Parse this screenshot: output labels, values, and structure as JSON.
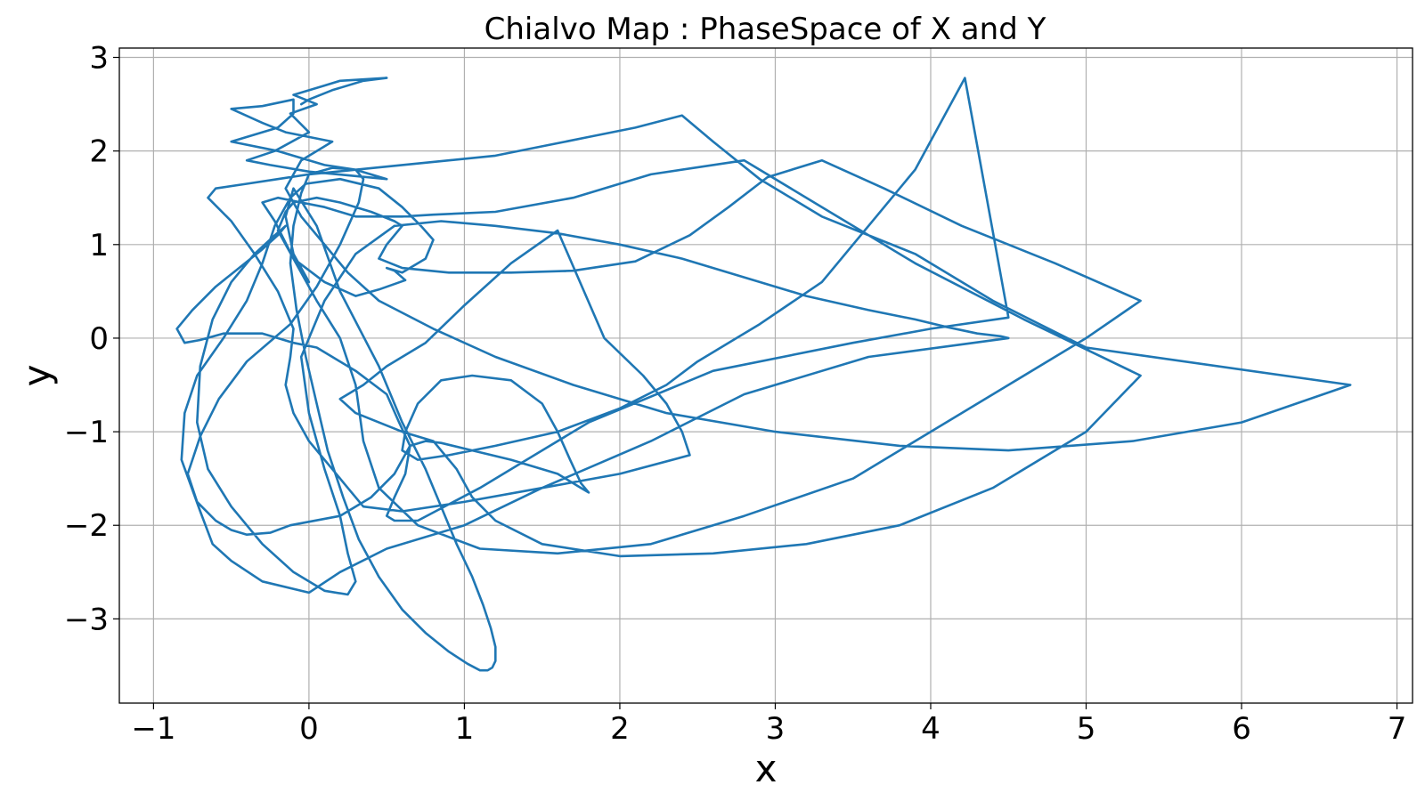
{
  "chart_data": {
    "type": "line",
    "title": "Chialvo Map : PhaseSpace of X and Y",
    "xlabel": "x",
    "ylabel": "y",
    "xlim": [
      -1.22,
      7.1
    ],
    "ylim": [
      -3.9,
      3.1
    ],
    "xticks": [
      -1,
      0,
      1,
      2,
      3,
      4,
      5,
      6,
      7
    ],
    "yticks": [
      -3,
      -2,
      -1,
      0,
      1,
      2,
      3
    ],
    "xtick_labels": [
      "−1",
      "0",
      "1",
      "2",
      "3",
      "4",
      "5",
      "6",
      "7"
    ],
    "ytick_labels": [
      "−3",
      "−2",
      "−1",
      "0",
      "1",
      "2",
      "3"
    ],
    "grid": true,
    "legend": "none",
    "series": [
      {
        "color": "#1f77b4",
        "x": [
          0.0,
          -0.1,
          -0.15,
          -0.1,
          0.05,
          0.2,
          0.45,
          0.6,
          0.75,
          0.85,
          0.95,
          1.05,
          1.12,
          1.17,
          1.2,
          1.2,
          1.18,
          1.15,
          1.1,
          1.02,
          0.9,
          0.75,
          0.6,
          0.45,
          0.32,
          0.22,
          0.12,
          0.05,
          -0.02,
          -0.08,
          -0.12,
          -0.1,
          -0.05,
          0.0,
          0.15,
          0.3,
          0.35,
          0.32,
          0.2,
          0.05,
          -0.12,
          -0.4,
          -0.58,
          -0.7,
          -0.78,
          -0.72,
          -0.6,
          -0.5,
          -0.4,
          -0.25,
          -0.12,
          0.2,
          0.4,
          0.55,
          0.65,
          0.75,
          0.85,
          1.05,
          1.3,
          1.6,
          1.75,
          1.8,
          1.75,
          1.68,
          1.6,
          1.5,
          1.3,
          1.05,
          0.85,
          0.7,
          0.62,
          0.6,
          0.7,
          0.9,
          1.2,
          1.6,
          2.0,
          2.3,
          2.5,
          2.9,
          3.3,
          3.6,
          3.9,
          4.22,
          4.5,
          4.0,
          3.5,
          2.6,
          1.8,
          1.1,
          0.7,
          0.55,
          0.5,
          0.55,
          0.62,
          0.65,
          0.58,
          0.5,
          0.3,
          0.15,
          0.05,
          -0.1,
          -0.3,
          -0.55,
          -0.7,
          -0.8,
          -0.85,
          -0.75,
          -0.6,
          -0.45,
          -0.3,
          -0.2,
          -0.15,
          -0.22,
          -0.35,
          -0.5,
          -0.62,
          -0.7,
          -0.72,
          -0.65,
          -0.5,
          -0.3,
          -0.1,
          0.1,
          0.25,
          0.3,
          0.25,
          0.2,
          0.1,
          0.0,
          -0.05,
          0.1,
          0.3,
          0.55,
          0.85,
          1.2,
          1.6,
          2.0,
          2.4,
          2.8,
          3.2,
          3.6,
          3.9,
          4.1,
          4.3,
          4.45,
          4.5,
          3.6,
          2.8,
          2.2,
          1.5,
          1.0,
          0.5,
          0.2,
          0.0,
          -0.3,
          -0.5,
          -0.62,
          -0.7,
          -0.82,
          -0.8,
          -0.72,
          -0.55,
          -0.4,
          -0.3,
          -0.22,
          -0.12,
          -0.02,
          0.2,
          0.45,
          0.6,
          0.72,
          0.8,
          0.75,
          0.6,
          0.5,
          0.55,
          0.62,
          0.45,
          0.3,
          0.1,
          -0.1,
          -0.2,
          -0.15,
          -0.1,
          0.05,
          0.2,
          0.4,
          0.55,
          0.6,
          0.55,
          0.5,
          0.45,
          0.6,
          0.9,
          1.3,
          1.7,
          2.1,
          2.45,
          2.7,
          2.95,
          3.3,
          3.7,
          4.2,
          4.8,
          5.35,
          5.0,
          4.5,
          4.0,
          3.5,
          2.8,
          2.2,
          1.6,
          1.1,
          0.7,
          0.45,
          0.35,
          0.3,
          0.2,
          0.05,
          -0.1,
          -0.22,
          -0.3,
          -0.2,
          -0.05,
          0.1,
          0.2,
          0.3,
          0.45,
          0.6,
          0.8,
          1.2,
          1.7,
          2.2,
          2.8,
          3.3,
          3.9,
          4.6,
          5.35,
          5.0,
          4.4,
          3.8,
          3.2,
          2.6,
          2.0,
          1.5,
          1.2,
          1.05,
          0.95,
          0.8,
          0.6,
          0.45,
          0.3,
          0.2,
          0.35,
          0.5,
          0.75,
          1.0,
          1.3,
          1.6,
          1.9,
          2.15,
          2.3,
          2.4,
          2.45,
          2.0,
          1.5,
          1.0,
          0.6,
          0.35,
          0.25,
          0.15,
          0.0,
          -0.1,
          -0.15,
          -0.12,
          -0.1,
          -0.2,
          -0.35,
          -0.5,
          -0.65,
          -0.6,
          -0.4,
          -0.2,
          0.0,
          0.3,
          0.6,
          0.9,
          1.2,
          1.5,
          1.8,
          2.1,
          2.4,
          2.6,
          2.9,
          3.3,
          3.9,
          4.4,
          5.0,
          6.7,
          6.0,
          5.3,
          4.5,
          3.8,
          3.0,
          2.3,
          1.7,
          1.2,
          0.8,
          0.45,
          0.25,
          0.1,
          -0.05,
          -0.15,
          -0.1,
          -0.05,
          0.05,
          0.15,
          -0.15,
          -0.3,
          -0.5,
          -0.3,
          -0.1,
          -0.1,
          -0.2,
          -0.5,
          -0.2,
          0.1,
          0.3,
          0.5,
          0.0,
          -0.25,
          -0.4,
          -0.22,
          0.0,
          -0.12,
          0.05,
          -0.1,
          0.1,
          0.2,
          0.5,
          0.35,
          0.15,
          0.0,
          -0.05
        ],
        "y": [
          0.6,
          0.9,
          1.3,
          1.6,
          1.2,
          0.5,
          -0.3,
          -0.9,
          -1.4,
          -1.8,
          -2.2,
          -2.55,
          -2.85,
          -3.1,
          -3.3,
          -3.45,
          -3.52,
          -3.55,
          -3.55,
          -3.48,
          -3.35,
          -3.15,
          -2.9,
          -2.55,
          -2.15,
          -1.7,
          -1.2,
          -0.7,
          -0.2,
          0.3,
          0.8,
          1.2,
          1.55,
          1.75,
          1.82,
          1.8,
          1.7,
          1.45,
          1.0,
          0.55,
          0.15,
          -0.25,
          -0.65,
          -1.05,
          -1.45,
          -1.75,
          -1.95,
          -2.05,
          -2.1,
          -2.08,
          -2.0,
          -1.9,
          -1.7,
          -1.45,
          -1.15,
          -1.1,
          -1.12,
          -1.2,
          -1.3,
          -1.45,
          -1.6,
          -1.65,
          -1.55,
          -1.3,
          -1.0,
          -0.7,
          -0.45,
          -0.4,
          -0.45,
          -0.7,
          -1.0,
          -1.2,
          -1.3,
          -1.25,
          -1.15,
          -1.0,
          -0.75,
          -0.5,
          -0.25,
          0.15,
          0.6,
          1.2,
          1.8,
          2.78,
          0.22,
          0.1,
          -0.05,
          -0.35,
          -0.9,
          -1.6,
          -1.95,
          -1.95,
          -1.9,
          -1.7,
          -1.45,
          -1.15,
          -0.9,
          -0.6,
          -0.35,
          -0.2,
          -0.1,
          -0.05,
          0.05,
          0.05,
          -0.02,
          -0.05,
          0.1,
          0.3,
          0.55,
          0.75,
          0.95,
          1.1,
          1.2,
          1.1,
          0.9,
          0.6,
          0.2,
          -0.3,
          -0.9,
          -1.4,
          -1.8,
          -2.2,
          -2.5,
          -2.7,
          -2.74,
          -2.6,
          -2.3,
          -1.9,
          -1.4,
          -0.8,
          -0.2,
          0.4,
          0.9,
          1.2,
          1.25,
          1.2,
          1.12,
          1.0,
          0.85,
          0.65,
          0.45,
          0.3,
          0.2,
          0.12,
          0.05,
          0.02,
          0.0,
          -0.2,
          -0.6,
          -1.1,
          -1.6,
          -2.0,
          -2.25,
          -2.5,
          -2.72,
          -2.6,
          -2.38,
          -2.2,
          -1.85,
          -1.3,
          -0.8,
          -0.4,
          0.0,
          0.4,
          0.8,
          1.2,
          1.5,
          1.65,
          1.7,
          1.6,
          1.4,
          1.2,
          1.05,
          0.85,
          0.7,
          0.75,
          0.72,
          0.62,
          0.52,
          0.45,
          0.6,
          0.85,
          1.15,
          1.35,
          1.45,
          1.5,
          1.45,
          1.35,
          1.25,
          1.2,
          1.1,
          1.0,
          0.85,
          0.75,
          0.7,
          0.7,
          0.72,
          0.82,
          1.1,
          1.4,
          1.72,
          1.9,
          1.6,
          1.2,
          0.8,
          0.4,
          0.0,
          -0.5,
          -1.0,
          -1.5,
          -1.9,
          -2.2,
          -2.3,
          -2.25,
          -2.0,
          -1.6,
          -1.1,
          -0.5,
          0.0,
          0.4,
          0.85,
          1.25,
          1.45,
          1.5,
          1.45,
          1.4,
          1.35,
          1.3,
          1.3,
          1.3,
          1.32,
          1.35,
          1.5,
          1.75,
          1.9,
          1.4,
          0.8,
          0.2,
          -0.4,
          -1.0,
          -1.6,
          -2.0,
          -2.2,
          -2.3,
          -2.33,
          -2.2,
          -1.95,
          -1.7,
          -1.4,
          -1.1,
          -1.0,
          -0.9,
          -0.8,
          -0.65,
          -0.5,
          -0.3,
          -0.05,
          0.35,
          0.8,
          1.15,
          0.0,
          -0.4,
          -0.7,
          -1.0,
          -1.25,
          -1.45,
          -1.6,
          -1.75,
          -1.85,
          -1.8,
          -1.6,
          -1.4,
          -1.1,
          -0.8,
          -0.5,
          -0.2,
          0.1,
          0.5,
          0.9,
          1.25,
          1.5,
          1.6,
          1.65,
          1.7,
          1.75,
          1.8,
          1.85,
          1.9,
          1.95,
          2.05,
          2.15,
          2.25,
          2.38,
          2.1,
          1.7,
          1.3,
          0.9,
          0.4,
          -0.1,
          -0.5,
          -0.9,
          -1.1,
          -1.2,
          -1.15,
          -1.0,
          -0.8,
          -0.5,
          -0.2,
          0.1,
          0.4,
          0.7,
          1.0,
          1.3,
          1.6,
          1.75,
          1.9,
          2.0,
          2.1,
          2.2,
          2.3,
          2.45,
          2.48,
          2.55,
          2.4,
          2.25,
          2.1,
          2.0,
          1.85,
          1.8,
          1.7,
          1.78,
          1.85,
          1.9,
          2.0,
          2.2,
          2.4,
          2.5,
          2.6,
          2.7,
          2.75,
          2.78,
          2.75,
          2.65,
          2.55,
          2.5
        ]
      }
    ]
  }
}
